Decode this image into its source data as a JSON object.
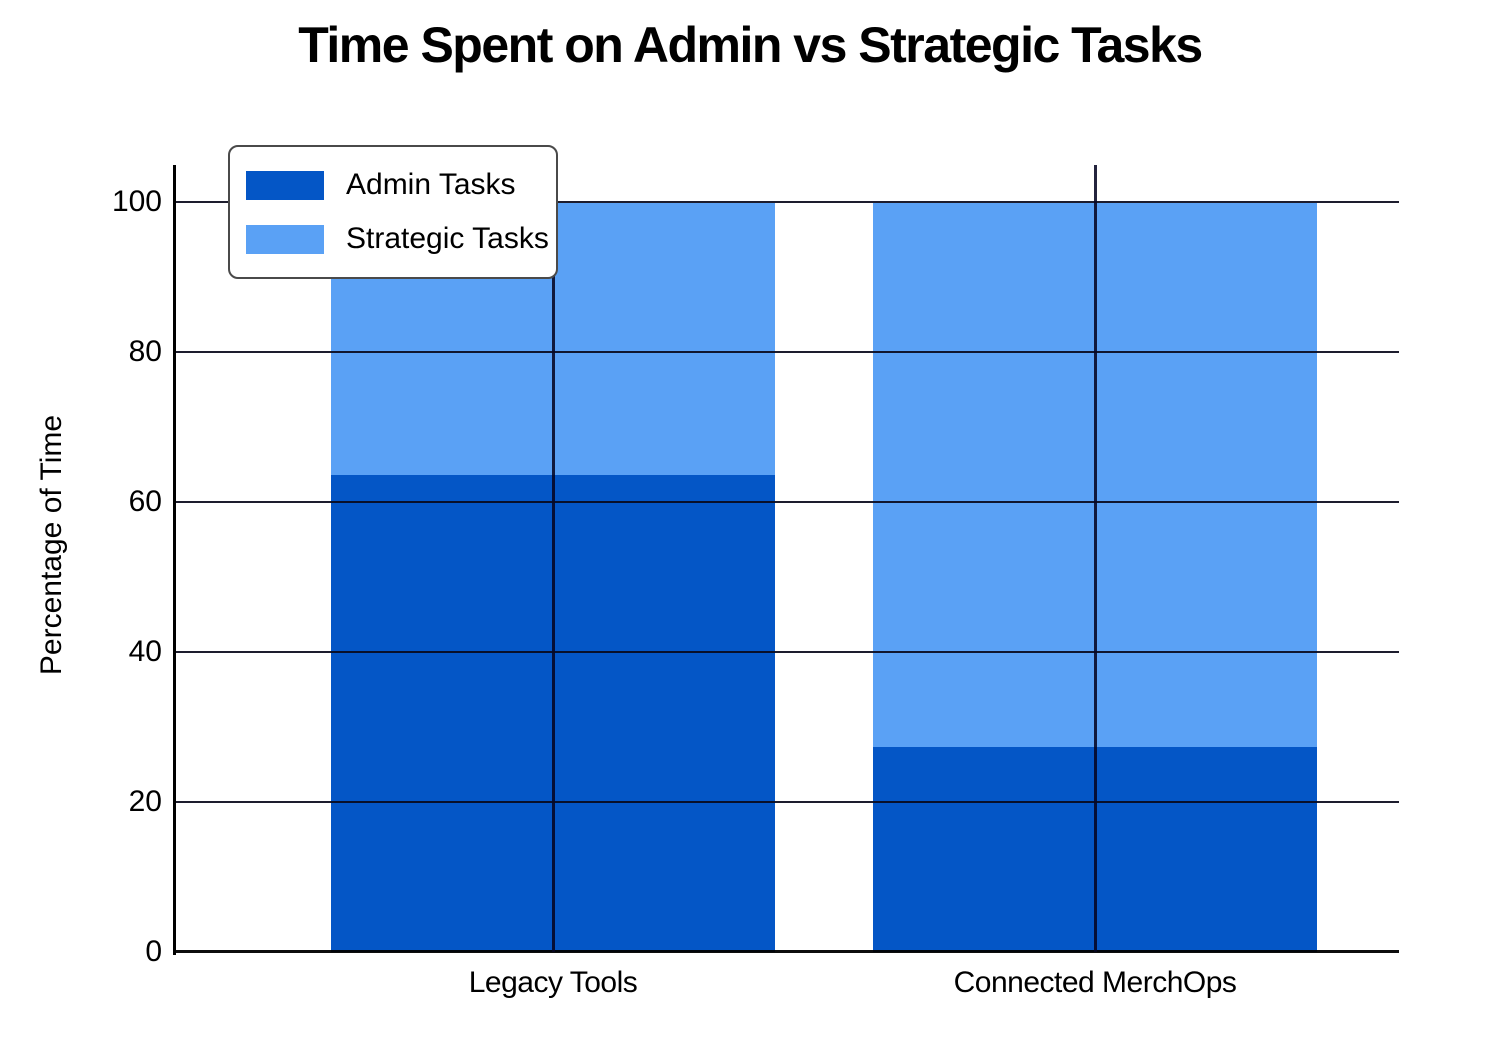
{
  "chart_data": {
    "type": "bar",
    "stacked": true,
    "title": "Time Spent on Admin vs Strategic Tasks",
    "xlabel": "",
    "ylabel": "Percentage of Time",
    "categories": [
      "Legacy Tools",
      "Connected MerchOps"
    ],
    "series": [
      {
        "name": "Admin Tasks",
        "color": "#0456C6",
        "values": [
          63.6,
          27.3
        ]
      },
      {
        "name": "Strategic Tasks",
        "color": "#5AA1F5",
        "values": [
          36.4,
          72.7
        ]
      }
    ],
    "ylim": [
      0,
      105
    ],
    "yticks": [
      0,
      20,
      40,
      60,
      80,
      100
    ],
    "grid": true,
    "legend_position": "upper-left",
    "background_color": "#ffffff",
    "line_color": "#000000"
  }
}
